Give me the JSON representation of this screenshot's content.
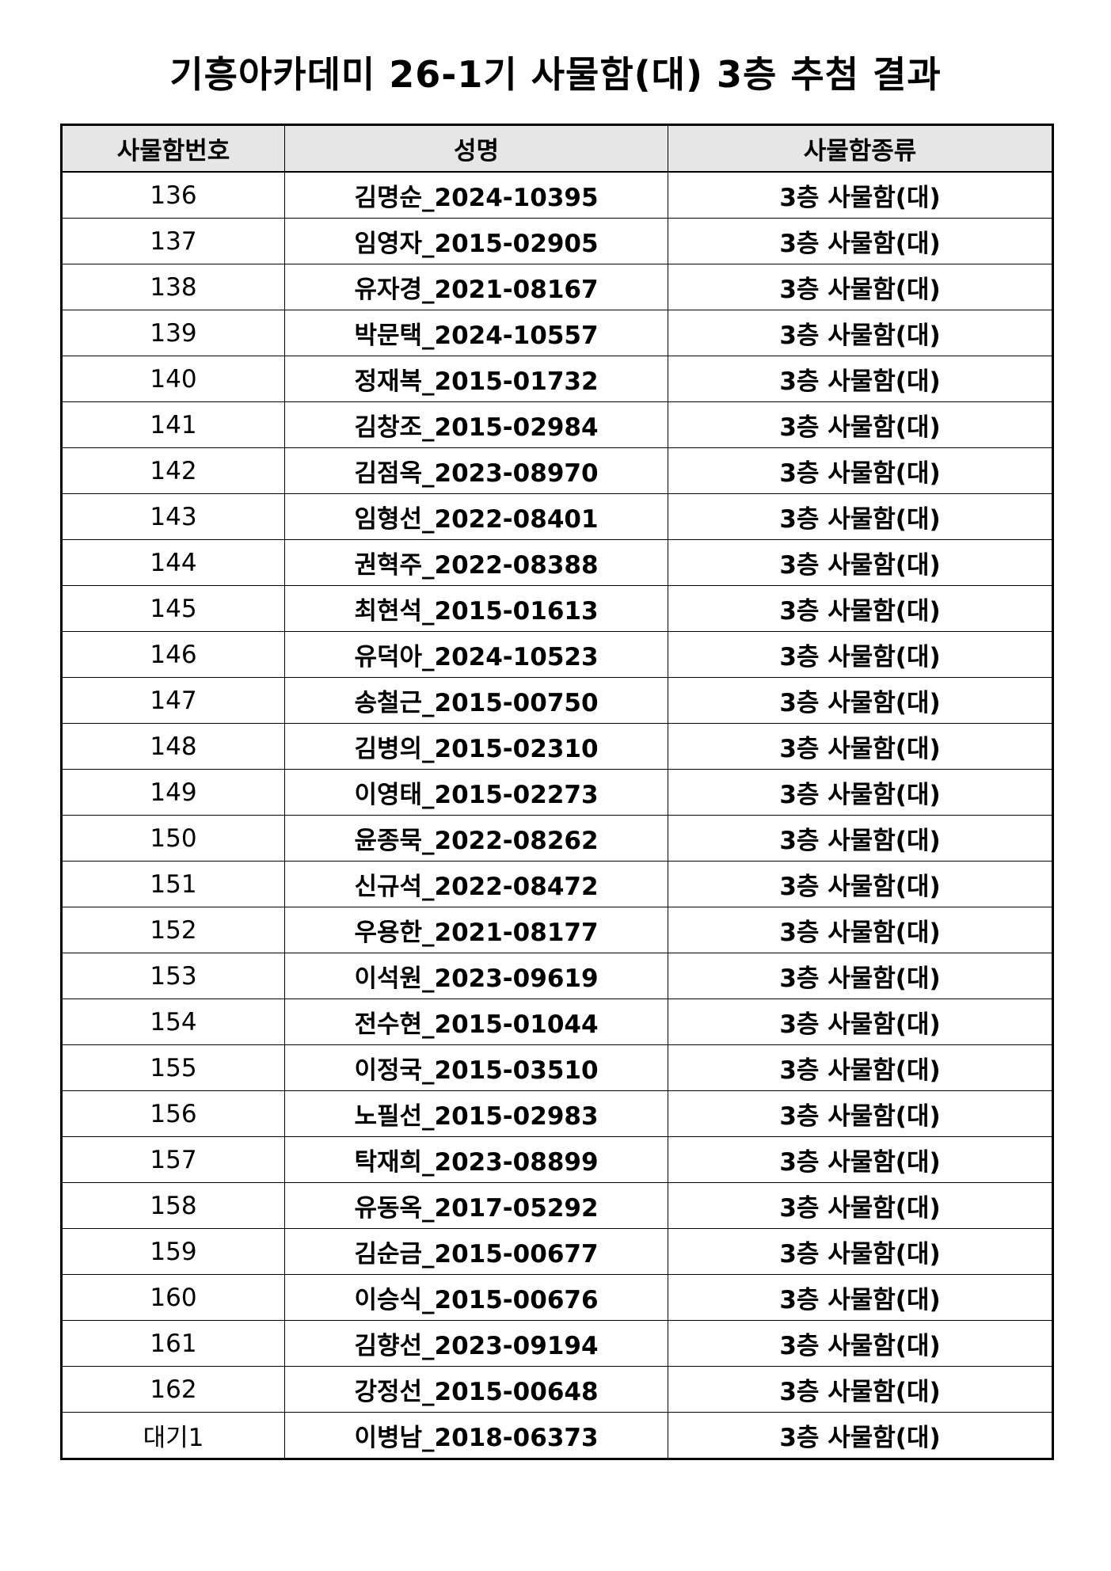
{
  "header": {
    "title": "기흥아카데미 26-1기 사물함(대) 3층 추첨 결과"
  },
  "table": {
    "columns": [
      "사물함번호",
      "성명",
      "사물함종류"
    ],
    "rows": [
      [
        "136",
        "김명순_2024-10395",
        "3층 사물함(대)"
      ],
      [
        "137",
        "임영자_2015-02905",
        "3층 사물함(대)"
      ],
      [
        "138",
        "유자경_2021-08167",
        "3층 사물함(대)"
      ],
      [
        "139",
        "박문택_2024-10557",
        "3층 사물함(대)"
      ],
      [
        "140",
        "정재복_2015-01732",
        "3층 사물함(대)"
      ],
      [
        "141",
        "김창조_2015-02984",
        "3층 사물함(대)"
      ],
      [
        "142",
        "김점옥_2023-08970",
        "3층 사물함(대)"
      ],
      [
        "143",
        "임형선_2022-08401",
        "3층 사물함(대)"
      ],
      [
        "144",
        "권혁주_2022-08388",
        "3층 사물함(대)"
      ],
      [
        "145",
        "최현석_2015-01613",
        "3층 사물함(대)"
      ],
      [
        "146",
        "유덕아_2024-10523",
        "3층 사물함(대)"
      ],
      [
        "147",
        "송철근_2015-00750",
        "3층 사물함(대)"
      ],
      [
        "148",
        "김병의_2015-02310",
        "3층 사물함(대)"
      ],
      [
        "149",
        "이영태_2015-02273",
        "3층 사물함(대)"
      ],
      [
        "150",
        "윤종묵_2022-08262",
        "3층 사물함(대)"
      ],
      [
        "151",
        "신규석_2022-08472",
        "3층 사물함(대)"
      ],
      [
        "152",
        "우용한_2021-08177",
        "3층 사물함(대)"
      ],
      [
        "153",
        "이석원_2023-09619",
        "3층 사물함(대)"
      ],
      [
        "154",
        "전수현_2015-01044",
        "3층 사물함(대)"
      ],
      [
        "155",
        "이정국_2015-03510",
        "3층 사물함(대)"
      ],
      [
        "156",
        "노필선_2015-02983",
        "3층 사물함(대)"
      ],
      [
        "157",
        "탁재희_2023-08899",
        "3층 사물함(대)"
      ],
      [
        "158",
        "유동옥_2017-05292",
        "3층 사물함(대)"
      ],
      [
        "159",
        "김순금_2015-00677",
        "3층 사물함(대)"
      ],
      [
        "160",
        "이승식_2015-00676",
        "3층 사물함(대)"
      ],
      [
        "161",
        "김향선_2023-09194",
        "3층 사물함(대)"
      ],
      [
        "162",
        "강정선_2015-00648",
        "3층 사물함(대)"
      ],
      [
        "대기1",
        "이병남_2018-06373",
        "3층 사물함(대)"
      ]
    ]
  }
}
